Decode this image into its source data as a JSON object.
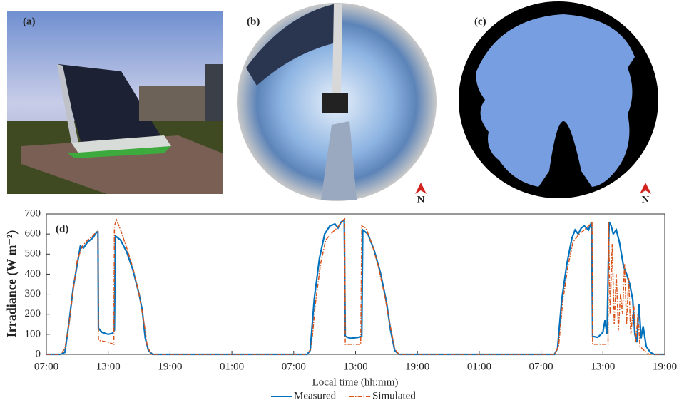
{
  "panels": [
    {
      "label": "(a)"
    },
    {
      "label": "(b)",
      "north": "N"
    },
    {
      "label": "(c)",
      "north": "N"
    }
  ],
  "chart_data": {
    "type": "line",
    "annotation": "(d)",
    "y_label": "Irradiance (W m⁻²)",
    "x_label": "Local time (hh:mm)",
    "xlim": [
      0,
      60
    ],
    "ylim": [
      0,
      700
    ],
    "xticks": [
      {
        "value": 0,
        "label": "07:00"
      },
      {
        "value": 6,
        "label": "13:00"
      },
      {
        "value": 12,
        "label": "19:00"
      },
      {
        "value": 18,
        "label": "01:00"
      },
      {
        "value": 24,
        "label": "07:00"
      },
      {
        "value": 30,
        "label": "13:00"
      },
      {
        "value": 36,
        "label": "19:00"
      },
      {
        "value": 42,
        "label": "01:00"
      },
      {
        "value": 48,
        "label": "07:00"
      },
      {
        "value": 54,
        "label": "13:00"
      },
      {
        "value": 60,
        "label": "19:00"
      }
    ],
    "yticks": [
      0,
      100,
      200,
      300,
      400,
      500,
      600,
      700
    ],
    "legend": "bottom",
    "series": [
      {
        "name": "Measured",
        "color": "#0072bd",
        "dash": "solid",
        "x": [
          0,
          1.4,
          1.8,
          2.2,
          2.6,
          3.0,
          3.3,
          3.6,
          4.0,
          4.5,
          4.9,
          5.0,
          5.05,
          5.4,
          6.0,
          6.4,
          6.6,
          6.7,
          7.2,
          7.8,
          8.4,
          9.0,
          9.3,
          9.6,
          9.9,
          10.3,
          25.3,
          25.6,
          26.0,
          26.5,
          27.0,
          27.5,
          28.0,
          28.3,
          28.6,
          28.9,
          29.0,
          29.5,
          30.3,
          30.6,
          30.7,
          31.2,
          31.8,
          32.4,
          33.0,
          33.4,
          33.8,
          34.2,
          49.3,
          49.6,
          50.0,
          50.5,
          51.0,
          51.3,
          51.6,
          51.9,
          52.2,
          52.6,
          52.9,
          53.0,
          53.5,
          54.0,
          54.2,
          54.4,
          54.6,
          54.8,
          55.0,
          55.3,
          55.6,
          56.0,
          56.3,
          56.6,
          56.9,
          57.1,
          57.3,
          57.5,
          57.7,
          57.9,
          58.2,
          58.6,
          59.0,
          60
        ],
        "values": [
          0,
          0,
          10,
          160,
          330,
          450,
          540,
          530,
          560,
          580,
          610,
          610,
          130,
          110,
          100,
          105,
          120,
          590,
          570,
          510,
          420,
          300,
          220,
          80,
          20,
          0,
          0,
          20,
          280,
          480,
          600,
          640,
          650,
          630,
          660,
          670,
          90,
          80,
          85,
          90,
          620,
          600,
          520,
          410,
          260,
          120,
          20,
          0,
          0,
          30,
          270,
          450,
          580,
          620,
          600,
          630,
          640,
          620,
          660,
          90,
          85,
          110,
          170,
          100,
          660,
          640,
          600,
          620,
          560,
          440,
          400,
          350,
          270,
          100,
          60,
          250,
          80,
          140,
          40,
          10,
          0,
          0
        ]
      },
      {
        "name": "Simulated",
        "color": "#d95319",
        "dash": "dashdot",
        "x": [
          0,
          1.4,
          1.8,
          2.2,
          2.6,
          3.0,
          3.5,
          4.0,
          4.5,
          4.9,
          5.0,
          5.05,
          5.6,
          6.3,
          6.55,
          6.6,
          6.8,
          7.2,
          7.8,
          8.4,
          9.0,
          9.5,
          9.8,
          10.2,
          25.3,
          25.7,
          26.1,
          26.6,
          27.1,
          27.6,
          28.2,
          28.8,
          28.95,
          29.0,
          30.5,
          30.6,
          31.0,
          31.6,
          32.2,
          32.8,
          33.3,
          33.8,
          34.2,
          49.3,
          49.7,
          50.1,
          50.6,
          51.1,
          51.7,
          52.2,
          52.8,
          52.95,
          53.0,
          54.5,
          54.55,
          54.7,
          54.9,
          55.1,
          55.3,
          55.5,
          55.7,
          55.9,
          56.1,
          56.3,
          56.5,
          56.7,
          57.0,
          57.2,
          57.4,
          57.6,
          58.0,
          58.5,
          60
        ],
        "values": [
          0,
          0,
          30,
          150,
          320,
          470,
          540,
          570,
          590,
          615,
          620,
          70,
          65,
          55,
          50,
          640,
          670,
          620,
          530,
          430,
          300,
          150,
          40,
          0,
          0,
          30,
          250,
          450,
          570,
          600,
          630,
          670,
          675,
          50,
          50,
          640,
          630,
          550,
          440,
          300,
          160,
          30,
          0,
          0,
          40,
          260,
          440,
          560,
          600,
          620,
          650,
          660,
          50,
          50,
          660,
          200,
          550,
          150,
          400,
          120,
          300,
          200,
          450,
          150,
          380,
          100,
          250,
          60,
          200,
          40,
          20,
          0,
          0
        ]
      }
    ]
  }
}
